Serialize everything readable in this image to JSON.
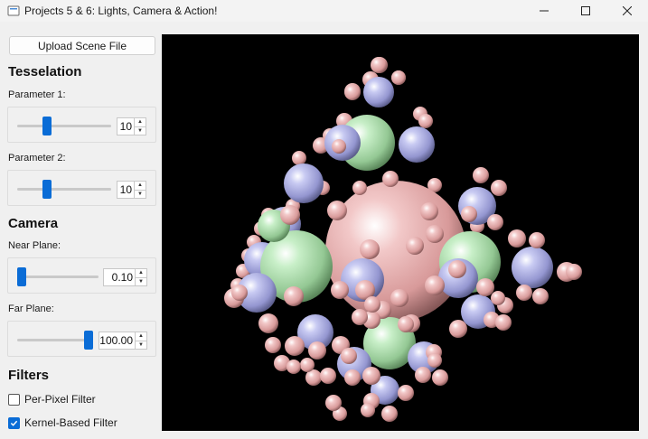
{
  "window": {
    "title": "Projects 5 & 6: Lights, Camera & Action!",
    "minimize_icon": "minimize-icon",
    "maximize_icon": "maximize-icon",
    "close_icon": "close-icon"
  },
  "sidebar": {
    "upload_label": "Upload Scene File",
    "tesselation": {
      "heading": "Tesselation",
      "param1": {
        "label": "Parameter 1:",
        "value": "10",
        "level": 0.3
      },
      "param2": {
        "label": "Parameter 2:",
        "value": "10",
        "level": 0.3
      }
    },
    "camera": {
      "heading": "Camera",
      "near": {
        "label": "Near Plane:",
        "value": "0.10",
        "level": 0.0
      },
      "far": {
        "label": "Far Plane:",
        "value": "100.00",
        "level": 1.0
      }
    },
    "filters": {
      "heading": "Filters",
      "per_pixel": {
        "label": "Per-Pixel Filter",
        "checked": false
      },
      "kernel": {
        "label": "Kernel-Based Filter",
        "checked": true
      }
    }
  },
  "viewport": {
    "scene": "recursive-spheres-render",
    "colors": {
      "background": "#000000",
      "pink": "#e8b0b0",
      "green": "#a8dca8",
      "blue": "#a8aae0"
    }
  }
}
